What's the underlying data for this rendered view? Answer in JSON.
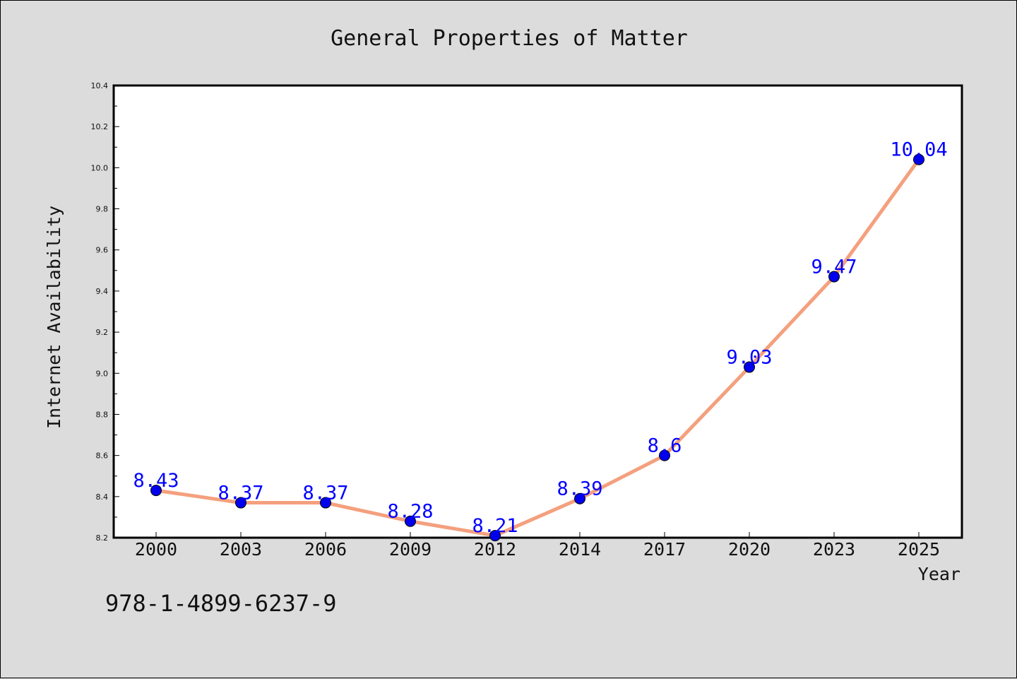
{
  "chart_data": {
    "type": "line",
    "title": "General Properties of Matter",
    "xlabel": "Year",
    "ylabel": "Internet Availability",
    "categories": [
      "2000",
      "2003",
      "2006",
      "2009",
      "2012",
      "2014",
      "2017",
      "2020",
      "2023",
      "2025"
    ],
    "series": [
      {
        "values": [
          8.43,
          8.37,
          8.37,
          8.28,
          8.21,
          8.39,
          8.6,
          9.03,
          9.47,
          10.04
        ],
        "labels": [
          "8.43",
          "8.37",
          "8.37",
          "8.28",
          "8.21",
          "8.39",
          "8.6",
          "9.03",
          "9.47",
          "10.04"
        ],
        "line_color": "#f4a07e",
        "marker_color": "#0000ee"
      }
    ],
    "ylim": [
      8.2,
      10.4
    ],
    "yticks": [
      "8.2",
      "8.4",
      "8.6",
      "8.8",
      "9.0",
      "9.2",
      "9.4",
      "9.6",
      "9.8",
      "10.0",
      "10.2",
      "10.4"
    ],
    "grid": false,
    "label_color": "#0000ff",
    "background": "#dcdcdc",
    "plot_background": "#ffffff"
  },
  "footer": {
    "isbn": "978-1-4899-6237-9"
  }
}
